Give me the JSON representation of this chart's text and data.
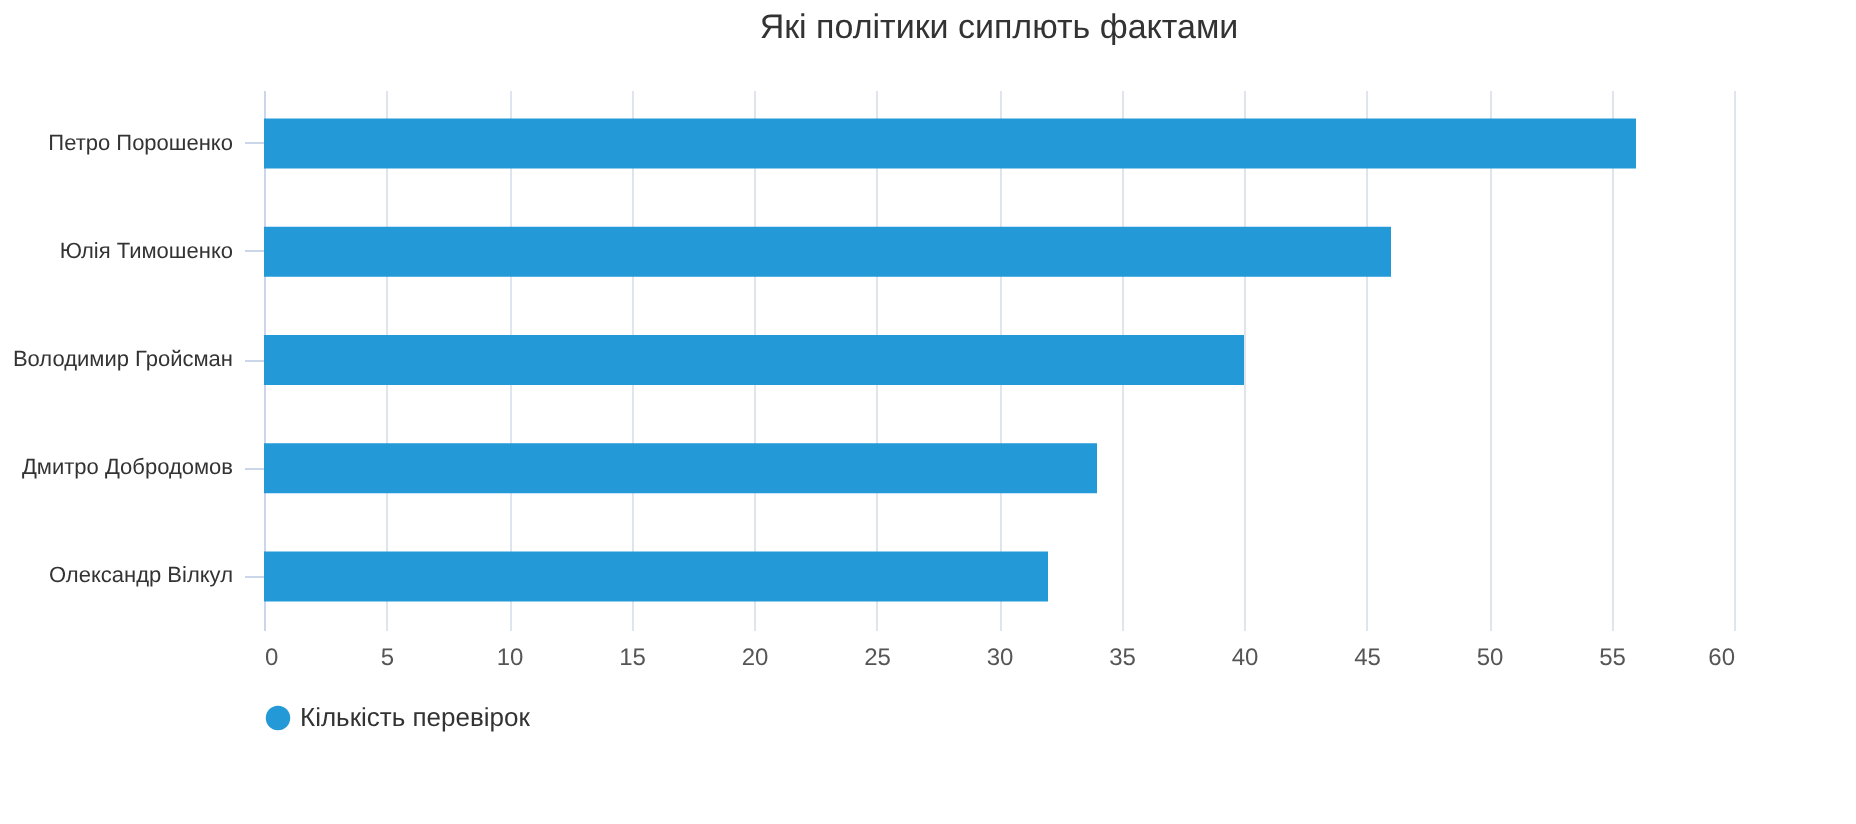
{
  "chart_data": {
    "type": "bar",
    "orientation": "horizontal",
    "title": "Які політики сиплють фактами",
    "categories": [
      "Петро Порошенко",
      "Юлія Тимошенко",
      "Володимир Гройсман",
      "Дмитро Добродомов",
      "Олександр Вілкул"
    ],
    "series": [
      {
        "name": "Кількість перевірок",
        "color": "#2399d8",
        "values": [
          56,
          46,
          40,
          34,
          32
        ]
      }
    ],
    "xlim": [
      0,
      60
    ],
    "xticks": [
      0,
      5,
      10,
      15,
      20,
      25,
      30,
      35,
      40,
      45,
      50,
      55,
      60
    ],
    "grid": "x",
    "legend": "bottom"
  }
}
